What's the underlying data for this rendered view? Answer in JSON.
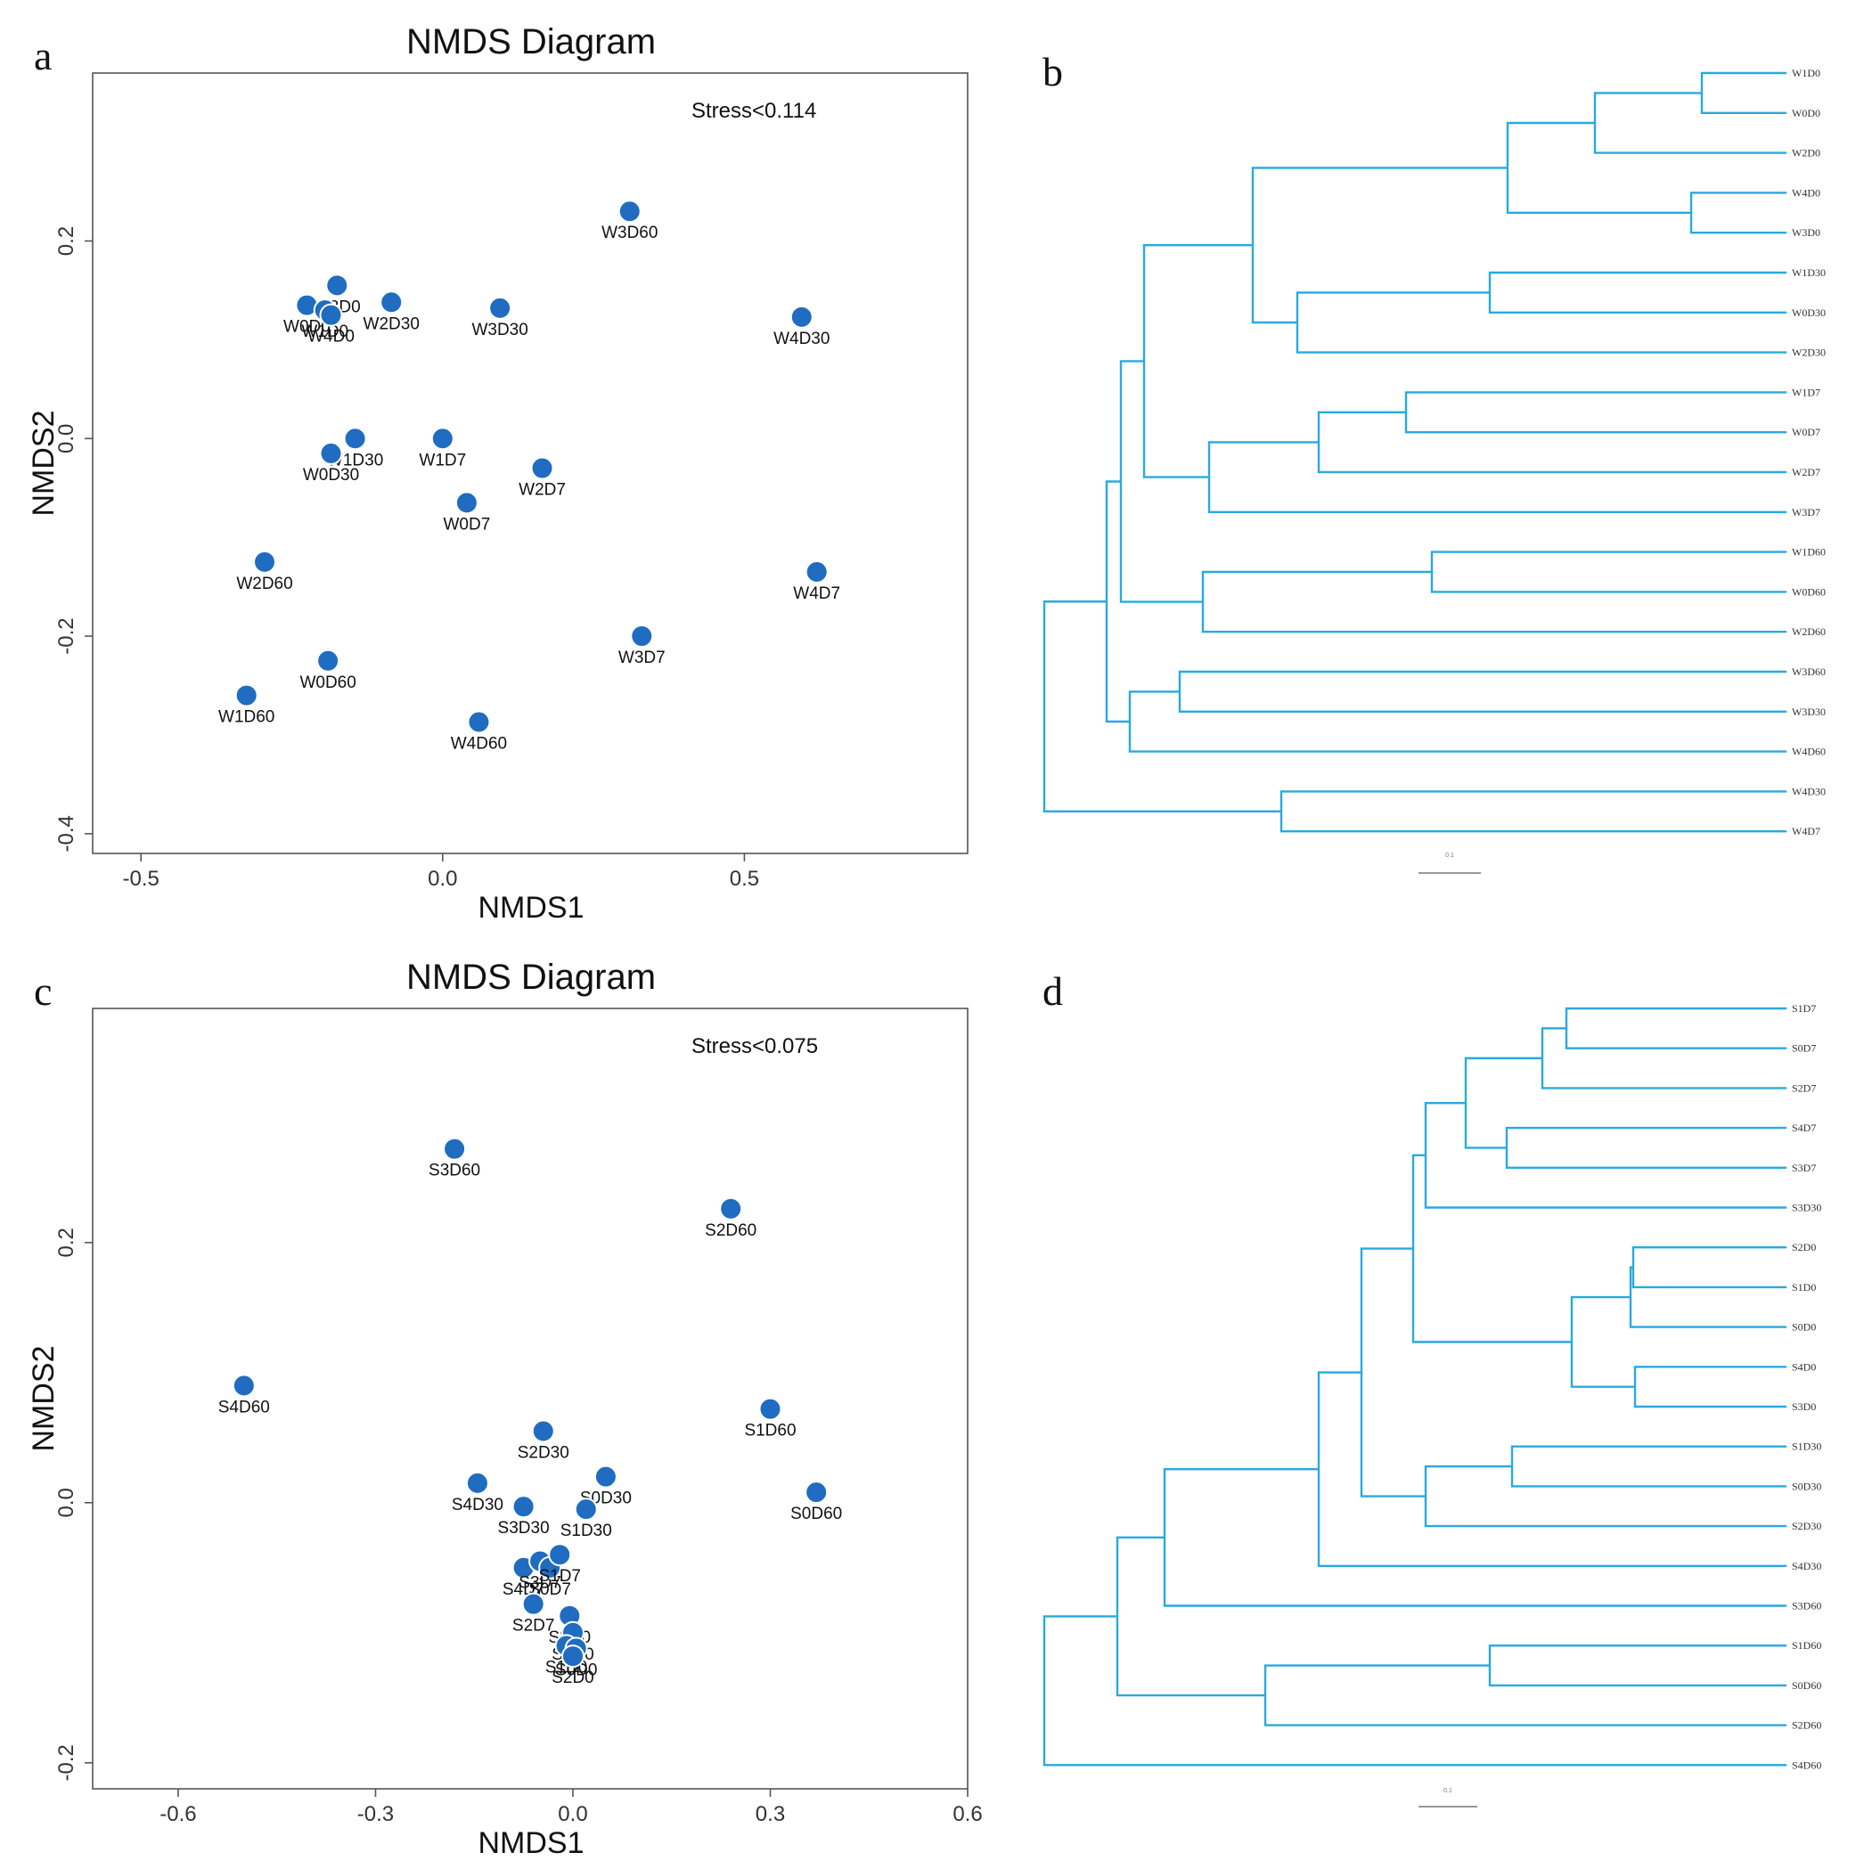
{
  "chart_data": [
    {
      "panel": "a",
      "type": "scatter",
      "title": "NMDS Diagram",
      "xlabel": "NMDS1",
      "ylabel": "NMDS2",
      "annotation": "Stress<0.114",
      "xlim": [
        -0.58,
        0.87
      ],
      "ylim": [
        -0.42,
        0.37
      ],
      "xticks": [
        -0.5,
        0.0,
        0.5
      ],
      "xtick_labels": [
        "-0.5",
        "0.0",
        "0.5"
      ],
      "yticks": [
        -0.4,
        -0.2,
        0.0,
        0.2
      ],
      "ytick_labels": [
        "-0.4",
        "-0.2",
        "0.0",
        "0.2"
      ],
      "points": [
        {
          "label": "W3D60",
          "x": 0.31,
          "y": 0.23
        },
        {
          "label": "W3D0",
          "x": -0.175,
          "y": 0.155
        },
        {
          "label": "W0D0",
          "x": -0.225,
          "y": 0.135
        },
        {
          "label": "W1D0",
          "x": -0.195,
          "y": 0.13
        },
        {
          "label": "W4D0",
          "x": -0.185,
          "y": 0.125
        },
        {
          "label": "W2D30",
          "x": -0.085,
          "y": 0.138
        },
        {
          "label": "W3D30",
          "x": 0.095,
          "y": 0.132
        },
        {
          "label": "W4D30",
          "x": 0.595,
          "y": 0.123
        },
        {
          "label": "W1D30",
          "x": -0.145,
          "y": 0.0
        },
        {
          "label": "W0D30",
          "x": -0.185,
          "y": -0.015
        },
        {
          "label": "W1D7",
          "x": 0.0,
          "y": 0.0
        },
        {
          "label": "W2D7",
          "x": 0.165,
          "y": -0.03
        },
        {
          "label": "W0D7",
          "x": 0.04,
          "y": -0.065
        },
        {
          "label": "W2D60",
          "x": -0.295,
          "y": -0.125
        },
        {
          "label": "W4D7",
          "x": 0.62,
          "y": -0.135
        },
        {
          "label": "W3D7",
          "x": 0.33,
          "y": -0.2
        },
        {
          "label": "W0D60",
          "x": -0.19,
          "y": -0.225
        },
        {
          "label": "W1D60",
          "x": -0.325,
          "y": -0.26
        },
        {
          "label": "W4D60",
          "x": 0.06,
          "y": -0.287
        }
      ]
    },
    {
      "panel": "b",
      "type": "dendrogram",
      "leaves": [
        "W1D0",
        "W0D0",
        "W2D0",
        "W4D0",
        "W3D0",
        "W1D30",
        "W0D30",
        "W2D30",
        "W1D7",
        "W0D7",
        "W2D7",
        "W3D7",
        "W1D60",
        "W0D60",
        "W2D60",
        "W3D60",
        "W3D30",
        "W4D60",
        "W4D30",
        "W4D7"
      ],
      "scale_label": "0.1"
    },
    {
      "panel": "c",
      "type": "scatter",
      "title": "NMDS Diagram",
      "xlabel": "NMDS1",
      "ylabel": "NMDS2",
      "annotation": "Stress<0.075",
      "xlim": [
        -0.73,
        0.6
      ],
      "ylim": [
        -0.22,
        0.38
      ],
      "xticks": [
        -0.6,
        -0.3,
        0.0,
        0.3,
        0.6
      ],
      "xtick_labels": [
        "-0.6",
        "-0.3",
        "0.0",
        "0.3",
        "0.6"
      ],
      "yticks": [
        -0.2,
        0.0,
        0.2
      ],
      "ytick_labels": [
        "-0.2",
        "0.0",
        "0.2"
      ],
      "points": [
        {
          "label": "S3D60",
          "x": -0.18,
          "y": 0.272
        },
        {
          "label": "S2D60",
          "x": 0.24,
          "y": 0.226
        },
        {
          "label": "S4D60",
          "x": -0.5,
          "y": 0.09
        },
        {
          "label": "S1D60",
          "x": 0.3,
          "y": 0.072
        },
        {
          "label": "S2D30",
          "x": -0.045,
          "y": 0.055
        },
        {
          "label": "S0D30",
          "x": 0.05,
          "y": 0.02
        },
        {
          "label": "S0D60",
          "x": 0.37,
          "y": 0.008
        },
        {
          "label": "S4D30",
          "x": -0.145,
          "y": 0.015
        },
        {
          "label": "S3D30",
          "x": -0.075,
          "y": -0.003
        },
        {
          "label": "S1D30",
          "x": 0.02,
          "y": -0.005
        },
        {
          "label": "S4D7",
          "x": -0.075,
          "y": -0.05
        },
        {
          "label": "S3D7",
          "x": -0.05,
          "y": -0.045
        },
        {
          "label": "S0D7",
          "x": -0.035,
          "y": -0.05
        },
        {
          "label": "S1D7",
          "x": -0.02,
          "y": -0.04
        },
        {
          "label": "S2D7",
          "x": -0.06,
          "y": -0.078
        },
        {
          "label": "S3D0",
          "x": -0.005,
          "y": -0.087
        },
        {
          "label": "S4D0",
          "x": 0.0,
          "y": -0.1
        },
        {
          "label": "S1D0",
          "x": -0.01,
          "y": -0.11
        },
        {
          "label": "S0D0",
          "x": 0.005,
          "y": -0.112
        },
        {
          "label": "S2D0",
          "x": 0.0,
          "y": -0.118
        }
      ]
    },
    {
      "panel": "d",
      "type": "dendrogram",
      "leaves": [
        "S1D7",
        "S0D7",
        "S2D7",
        "S4D7",
        "S3D7",
        "S3D30",
        "S2D0",
        "S1D0",
        "S0D0",
        "S4D0",
        "S3D0",
        "S1D30",
        "S0D30",
        "S2D30",
        "S4D30",
        "S3D60",
        "S1D60",
        "S0D60",
        "S2D60",
        "S4D60"
      ],
      "scale_label": "0.1"
    }
  ],
  "colors": {
    "point": "#1f6cc0",
    "branch": "#29a9e0",
    "frame": "#555555"
  }
}
